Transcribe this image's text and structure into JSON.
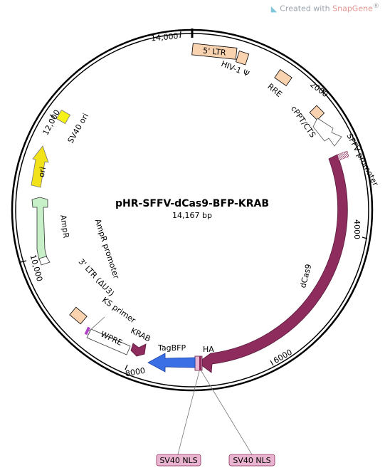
{
  "watermark": {
    "prefix": "Created with ",
    "brand": "SnapGene",
    "reg": "®",
    "logo_icon": "snapgene-logo-icon"
  },
  "plasmid": {
    "name": "pHR-SFFV-dCas9-BFP-KRAB",
    "size_label": "14,167 bp"
  },
  "ticks": [
    "14,000",
    "2000",
    "4000",
    "6000",
    "8000",
    "10,000",
    "12,000"
  ],
  "features": {
    "ltr5": "5' LTR",
    "hiv_psi": "HIV-1 Ψ",
    "rre": "RRE",
    "cppt": "cPPT/CTS",
    "sffv": "SFFV promoter",
    "dcas9": "dCas9",
    "ha": "HA",
    "tagbfp": "TagBFP",
    "krab": "KRAB",
    "wpre": "WPRE",
    "ks_primer": "KS primer",
    "ltr3": "3' LTR (ΔU3)",
    "ampr_promoter": "AmpR promoter",
    "ampr": "AmpR",
    "ori": "ori",
    "sv40_ori": "SV40 ori"
  },
  "callouts": [
    "SV40 NLS",
    "SV40 NLS"
  ],
  "colors": {
    "backbone": "#000000",
    "ltr": "#f9d2b0",
    "dcas9": "#8e2c5e",
    "tagbfp": "#3a6fe6",
    "krab": "#8e2c5e",
    "ampr": "#c8f0c8",
    "ori": "#f2e21a",
    "sv40_ori": "#f7f11a",
    "nls_callout": "#e9b4cf",
    "nls_border": "#8e2c5e"
  }
}
